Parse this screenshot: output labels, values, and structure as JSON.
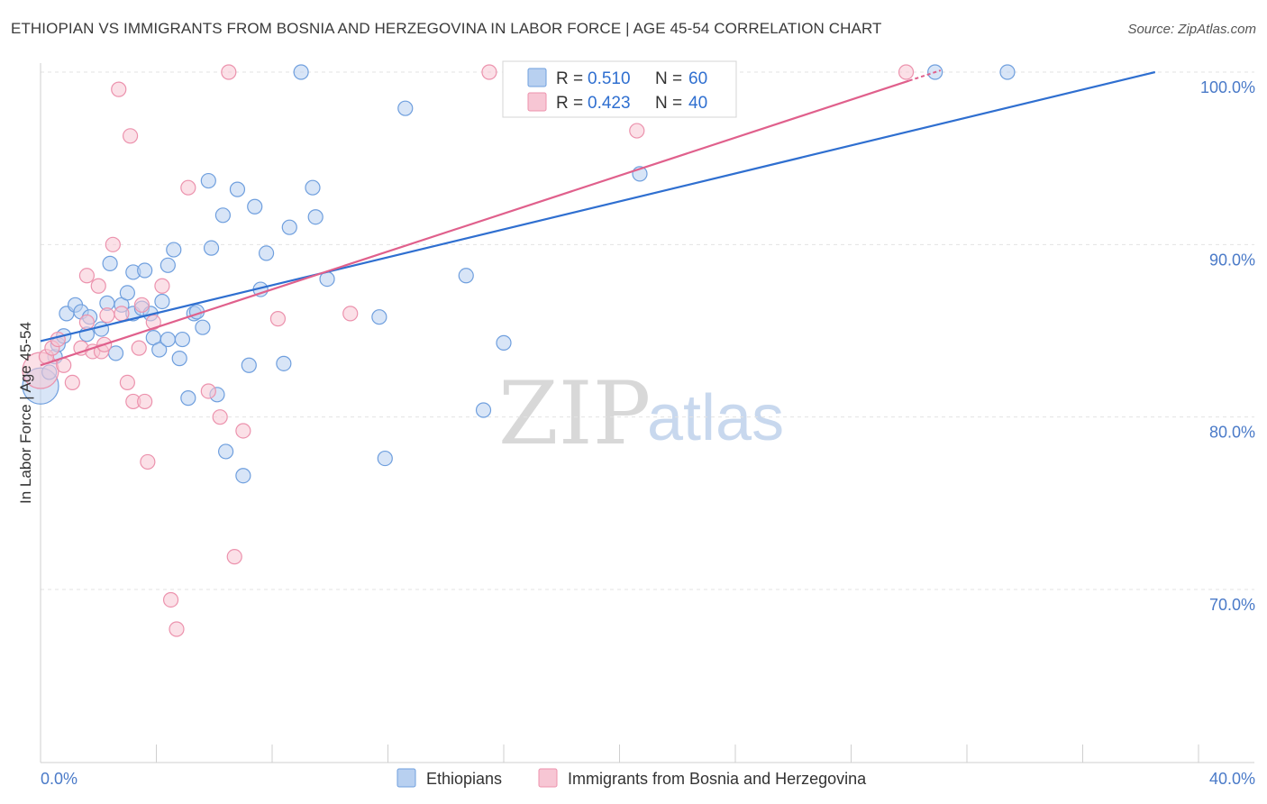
{
  "header": {
    "title": "ETHIOPIAN VS IMMIGRANTS FROM BOSNIA AND HERZEGOVINA IN LABOR FORCE | AGE 45-54 CORRELATION CHART",
    "source": "Source: ZipAtlas.com"
  },
  "legend": {
    "r_label": "R =",
    "n_label": "N =",
    "series": [
      {
        "r": "0.510",
        "n": "60"
      },
      {
        "r": "0.423",
        "n": "40"
      }
    ]
  },
  "watermark": {
    "zip": "ZIP",
    "atlas": "atlas"
  },
  "colors": {
    "blue_fill": "#b8d0f0",
    "blue_stroke": "#6f9fde",
    "blue_line": "#2f6fd0",
    "pink_fill": "#f7c6d4",
    "pink_stroke": "#ec92ad",
    "pink_line": "#e0608c"
  },
  "chart_data": {
    "type": "scatter",
    "title": "ETHIOPIAN VS IMMIGRANTS FROM BOSNIA AND HERZEGOVINA IN LABOR FORCE | AGE 45-54 CORRELATION CHART",
    "xlabel": "",
    "ylabel": "In Labor Force | Age 45-54",
    "xlim": [
      0,
      40
    ],
    "ylim": [
      60.5,
      101
    ],
    "x_tick_labels": [
      "0.0%",
      "40.0%"
    ],
    "y_ticks": [
      70,
      80,
      90,
      100
    ],
    "y_tick_labels": [
      "70.0%",
      "80.0%",
      "90.0%",
      "100.0%"
    ],
    "series": [
      {
        "name": "Ethiopians",
        "color": "#6f9fde",
        "trend": {
          "x": [
            0,
            38.5
          ],
          "y": [
            84.4,
            100.0
          ]
        },
        "points": [
          {
            "x": 0.0,
            "y": 81.8,
            "big": true
          },
          {
            "x": 0.3,
            "y": 82.6
          },
          {
            "x": 0.5,
            "y": 83.5
          },
          {
            "x": 0.6,
            "y": 84.2
          },
          {
            "x": 0.8,
            "y": 84.7
          },
          {
            "x": 0.9,
            "y": 86.0
          },
          {
            "x": 1.2,
            "y": 86.5
          },
          {
            "x": 1.4,
            "y": 86.1
          },
          {
            "x": 1.6,
            "y": 84.8
          },
          {
            "x": 1.7,
            "y": 85.8
          },
          {
            "x": 2.1,
            "y": 85.1
          },
          {
            "x": 2.3,
            "y": 86.6
          },
          {
            "x": 2.4,
            "y": 88.9
          },
          {
            "x": 2.6,
            "y": 83.7
          },
          {
            "x": 2.8,
            "y": 86.5
          },
          {
            "x": 3.0,
            "y": 87.2
          },
          {
            "x": 3.2,
            "y": 86.0
          },
          {
            "x": 3.2,
            "y": 88.4
          },
          {
            "x": 3.5,
            "y": 86.3
          },
          {
            "x": 3.6,
            "y": 88.5
          },
          {
            "x": 3.8,
            "y": 86.0
          },
          {
            "x": 3.9,
            "y": 84.6
          },
          {
            "x": 4.1,
            "y": 83.9
          },
          {
            "x": 4.2,
            "y": 86.7
          },
          {
            "x": 4.4,
            "y": 84.5
          },
          {
            "x": 4.4,
            "y": 88.8
          },
          {
            "x": 4.6,
            "y": 89.7
          },
          {
            "x": 4.8,
            "y": 83.4
          },
          {
            "x": 4.9,
            "y": 84.5
          },
          {
            "x": 5.1,
            "y": 81.1
          },
          {
            "x": 5.3,
            "y": 86.0
          },
          {
            "x": 5.4,
            "y": 86.1
          },
          {
            "x": 5.6,
            "y": 85.2
          },
          {
            "x": 5.8,
            "y": 93.7
          },
          {
            "x": 5.9,
            "y": 89.8
          },
          {
            "x": 6.1,
            "y": 81.3
          },
          {
            "x": 6.3,
            "y": 91.7
          },
          {
            "x": 6.4,
            "y": 78.0
          },
          {
            "x": 6.8,
            "y": 93.2
          },
          {
            "x": 7.0,
            "y": 76.6
          },
          {
            "x": 7.2,
            "y": 83.0
          },
          {
            "x": 7.4,
            "y": 92.2
          },
          {
            "x": 7.6,
            "y": 87.4
          },
          {
            "x": 7.8,
            "y": 89.5
          },
          {
            "x": 8.4,
            "y": 83.1
          },
          {
            "x": 8.6,
            "y": 91.0
          },
          {
            "x": 9.0,
            "y": 100.0
          },
          {
            "x": 9.4,
            "y": 93.3
          },
          {
            "x": 9.5,
            "y": 91.6
          },
          {
            "x": 9.9,
            "y": 88.0
          },
          {
            "x": 11.7,
            "y": 85.8
          },
          {
            "x": 11.9,
            "y": 77.6
          },
          {
            "x": 12.6,
            "y": 97.9
          },
          {
            "x": 14.7,
            "y": 88.2
          },
          {
            "x": 15.3,
            "y": 80.4
          },
          {
            "x": 16.0,
            "y": 84.3
          },
          {
            "x": 20.7,
            "y": 94.1
          },
          {
            "x": 30.9,
            "y": 100.0
          },
          {
            "x": 33.4,
            "y": 100.0
          }
        ]
      },
      {
        "name": "Immigrants from Bosnia and Herzegovina",
        "color": "#ec92ad",
        "trend": {
          "x": [
            0,
            30.0
          ],
          "y": [
            83.0,
            99.5
          ]
        },
        "points": [
          {
            "x": 0.0,
            "y": 82.7,
            "big": true
          },
          {
            "x": 0.2,
            "y": 83.5
          },
          {
            "x": 0.4,
            "y": 84.0
          },
          {
            "x": 0.6,
            "y": 84.5
          },
          {
            "x": 0.8,
            "y": 83.0
          },
          {
            "x": 1.1,
            "y": 82.0
          },
          {
            "x": 1.4,
            "y": 84.0
          },
          {
            "x": 1.6,
            "y": 85.5
          },
          {
            "x": 1.6,
            "y": 88.2
          },
          {
            "x": 1.8,
            "y": 83.8
          },
          {
            "x": 2.0,
            "y": 87.6
          },
          {
            "x": 2.1,
            "y": 83.8
          },
          {
            "x": 2.2,
            "y": 84.2
          },
          {
            "x": 2.3,
            "y": 85.9
          },
          {
            "x": 2.5,
            "y": 90.0
          },
          {
            "x": 2.7,
            "y": 99.0
          },
          {
            "x": 2.8,
            "y": 86.0
          },
          {
            "x": 3.0,
            "y": 82.0
          },
          {
            "x": 3.1,
            "y": 96.3
          },
          {
            "x": 3.2,
            "y": 80.9
          },
          {
            "x": 3.4,
            "y": 84.0
          },
          {
            "x": 3.5,
            "y": 86.5
          },
          {
            "x": 3.6,
            "y": 80.9
          },
          {
            "x": 3.7,
            "y": 77.4
          },
          {
            "x": 3.9,
            "y": 85.5
          },
          {
            "x": 4.2,
            "y": 87.6
          },
          {
            "x": 4.5,
            "y": 69.4
          },
          {
            "x": 4.7,
            "y": 67.7
          },
          {
            "x": 5.1,
            "y": 93.3
          },
          {
            "x": 5.8,
            "y": 81.5
          },
          {
            "x": 6.2,
            "y": 80.0
          },
          {
            "x": 6.5,
            "y": 100.0
          },
          {
            "x": 6.7,
            "y": 71.9
          },
          {
            "x": 7.0,
            "y": 79.2
          },
          {
            "x": 8.2,
            "y": 85.7
          },
          {
            "x": 10.7,
            "y": 86.0
          },
          {
            "x": 15.5,
            "y": 100.0
          },
          {
            "x": 20.6,
            "y": 96.6
          },
          {
            "x": 29.9,
            "y": 100.0
          }
        ]
      }
    ]
  }
}
